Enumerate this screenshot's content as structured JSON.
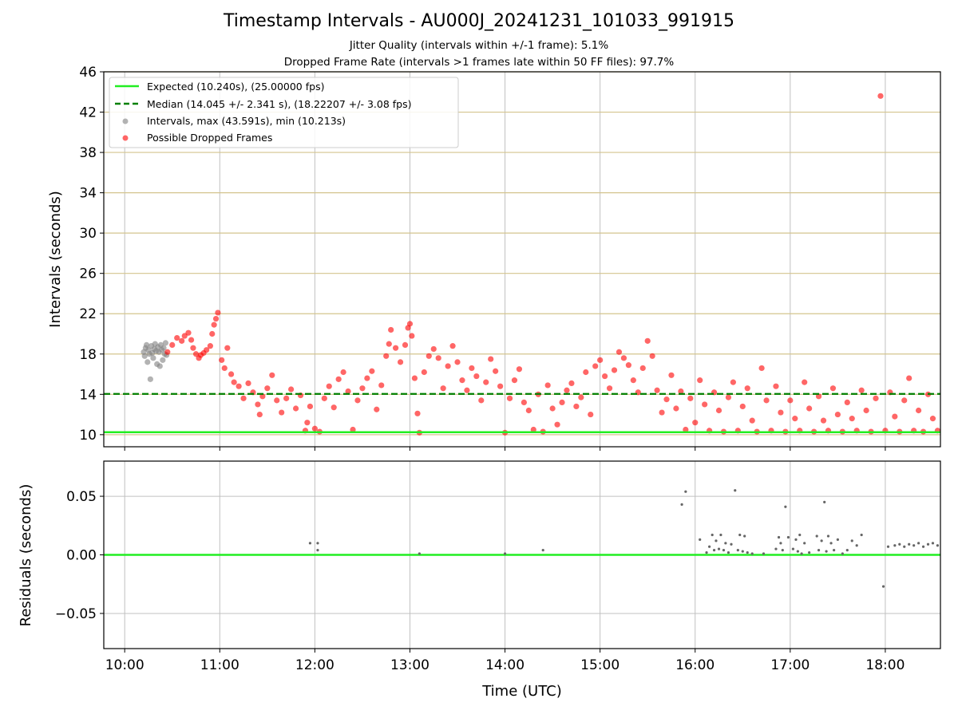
{
  "chart_data": [
    {
      "type": "scatter",
      "title": "Timestamp Intervals - AU000J_20241231_101033_991915",
      "subtitle_1": "Jitter Quality (intervals within +/-1 frame): 5.1%",
      "subtitle_2": "Dropped Frame Rate (intervals >1 frames late within 50 FF files): 97.7%",
      "xlabel": "",
      "ylabel": "Intervals (seconds)",
      "xlim": [
        9.78,
        18.58
      ],
      "ylim": [
        8.8,
        46
      ],
      "yticks": [
        10,
        14,
        18,
        22,
        26,
        30,
        34,
        38,
        42,
        46
      ],
      "ytick_labels": [
        "10",
        "14",
        "18",
        "22",
        "26",
        "30",
        "34",
        "38",
        "42",
        "46"
      ],
      "grid": true,
      "legend_position": "top-left",
      "colors": {
        "expected": "#22ee22",
        "median": "#008000",
        "intervals": "#808080",
        "dropped": "#ff0000",
        "hgrid": "#d4c48e"
      },
      "series": [
        {
          "name": "Expected (10.240s), (25.00000 fps)",
          "kind": "hline",
          "y": 10.24
        },
        {
          "name": "Median (14.045 +/- 2.341 s), (18.22207 +/- 3.08 fps)",
          "kind": "hline-dashed",
          "y": 14.045
        },
        {
          "name": "Intervals, max (43.591s), min (10.213s)",
          "kind": "scatter",
          "points": [
            [
              10.2,
              18.2
            ],
            [
              10.21,
              17.8
            ],
            [
              10.22,
              18.6
            ],
            [
              10.23,
              18.9
            ],
            [
              10.24,
              17.2
            ],
            [
              10.25,
              18.4
            ],
            [
              10.26,
              18.0
            ],
            [
              10.27,
              15.5
            ],
            [
              10.28,
              18.8
            ],
            [
              10.29,
              18.1
            ],
            [
              10.3,
              17.6
            ],
            [
              10.31,
              18.5
            ],
            [
              10.32,
              19.0
            ],
            [
              10.33,
              18.3
            ],
            [
              10.34,
              17.0
            ],
            [
              10.35,
              18.7
            ],
            [
              10.36,
              18.2
            ],
            [
              10.37,
              16.8
            ],
            [
              10.38,
              18.9
            ],
            [
              10.39,
              18.4
            ],
            [
              10.4,
              17.4
            ],
            [
              10.41,
              18.6
            ],
            [
              10.42,
              18.0
            ],
            [
              10.43,
              19.1
            ],
            [
              10.44,
              17.9
            ]
          ]
        },
        {
          "name": "Possible Dropped Frames",
          "kind": "scatter",
          "points": [
            [
              10.45,
              18.2
            ],
            [
              10.5,
              18.9
            ],
            [
              10.55,
              19.6
            ],
            [
              10.6,
              19.3
            ],
            [
              10.63,
              19.8
            ],
            [
              10.67,
              20.1
            ],
            [
              10.7,
              19.4
            ],
            [
              10.72,
              18.6
            ],
            [
              10.75,
              18.0
            ],
            [
              10.78,
              17.6
            ],
            [
              10.8,
              17.9
            ],
            [
              10.83,
              18.1
            ],
            [
              10.86,
              18.4
            ],
            [
              10.9,
              18.8
            ],
            [
              10.92,
              20.0
            ],
            [
              10.94,
              20.9
            ],
            [
              10.96,
              21.5
            ],
            [
              10.98,
              22.1
            ],
            [
              11.02,
              17.4
            ],
            [
              11.05,
              16.6
            ],
            [
              11.08,
              18.6
            ],
            [
              11.12,
              16.0
            ],
            [
              11.15,
              15.2
            ],
            [
              11.2,
              14.8
            ],
            [
              11.25,
              13.6
            ],
            [
              11.3,
              15.1
            ],
            [
              11.35,
              14.2
            ],
            [
              11.4,
              13.0
            ],
            [
              11.42,
              12.0
            ],
            [
              11.45,
              13.8
            ],
            [
              11.5,
              14.6
            ],
            [
              11.55,
              15.9
            ],
            [
              11.6,
              13.4
            ],
            [
              11.65,
              12.2
            ],
            [
              11.7,
              13.6
            ],
            [
              11.75,
              14.5
            ],
            [
              11.8,
              12.6
            ],
            [
              11.85,
              13.9
            ],
            [
              11.9,
              10.4
            ],
            [
              11.92,
              11.2
            ],
            [
              11.95,
              12.8
            ],
            [
              12.0,
              10.6
            ],
            [
              12.05,
              10.3
            ],
            [
              12.1,
              13.6
            ],
            [
              12.15,
              14.8
            ],
            [
              12.2,
              12.7
            ],
            [
              12.25,
              15.5
            ],
            [
              12.3,
              16.2
            ],
            [
              12.35,
              14.3
            ],
            [
              12.4,
              10.5
            ],
            [
              12.45,
              13.4
            ],
            [
              12.5,
              14.6
            ],
            [
              12.55,
              15.6
            ],
            [
              12.6,
              16.3
            ],
            [
              12.65,
              12.5
            ],
            [
              12.7,
              14.9
            ],
            [
              12.75,
              17.8
            ],
            [
              12.78,
              19.0
            ],
            [
              12.8,
              20.4
            ],
            [
              12.85,
              18.6
            ],
            [
              12.9,
              17.2
            ],
            [
              12.95,
              18.9
            ],
            [
              12.98,
              20.6
            ],
            [
              13.0,
              21.0
            ],
            [
              13.02,
              19.8
            ],
            [
              13.05,
              15.6
            ],
            [
              13.08,
              12.1
            ],
            [
              13.1,
              10.2
            ],
            [
              13.15,
              16.2
            ],
            [
              13.2,
              17.8
            ],
            [
              13.25,
              18.5
            ],
            [
              13.3,
              17.6
            ],
            [
              13.35,
              14.6
            ],
            [
              13.4,
              16.8
            ],
            [
              13.45,
              18.8
            ],
            [
              13.5,
              17.2
            ],
            [
              13.55,
              15.4
            ],
            [
              13.6,
              14.4
            ],
            [
              13.65,
              16.6
            ],
            [
              13.7,
              15.8
            ],
            [
              13.75,
              13.4
            ],
            [
              13.8,
              15.2
            ],
            [
              13.85,
              17.5
            ],
            [
              13.9,
              16.3
            ],
            [
              13.95,
              14.8
            ],
            [
              14.0,
              10.2
            ],
            [
              14.05,
              13.6
            ],
            [
              14.1,
              15.4
            ],
            [
              14.15,
              16.5
            ],
            [
              14.2,
              13.2
            ],
            [
              14.25,
              12.4
            ],
            [
              14.3,
              10.5
            ],
            [
              14.35,
              14.0
            ],
            [
              14.4,
              10.3
            ],
            [
              14.45,
              14.9
            ],
            [
              14.5,
              12.6
            ],
            [
              14.55,
              11.0
            ],
            [
              14.6,
              13.2
            ],
            [
              14.65,
              14.4
            ],
            [
              14.7,
              15.1
            ],
            [
              14.75,
              12.8
            ],
            [
              14.8,
              13.7
            ],
            [
              14.85,
              16.2
            ],
            [
              14.9,
              12.0
            ],
            [
              14.95,
              16.8
            ],
            [
              15.0,
              17.4
            ],
            [
              15.05,
              15.8
            ],
            [
              15.1,
              14.6
            ],
            [
              15.15,
              16.4
            ],
            [
              15.2,
              18.2
            ],
            [
              15.25,
              17.6
            ],
            [
              15.3,
              16.9
            ],
            [
              15.35,
              15.4
            ],
            [
              15.4,
              14.2
            ],
            [
              15.45,
              16.6
            ],
            [
              15.5,
              19.3
            ],
            [
              15.55,
              17.8
            ],
            [
              15.6,
              14.4
            ],
            [
              15.65,
              12.2
            ],
            [
              15.7,
              13.5
            ],
            [
              15.75,
              15.9
            ],
            [
              15.8,
              12.6
            ],
            [
              15.85,
              14.3
            ],
            [
              15.9,
              10.5
            ],
            [
              15.95,
              13.6
            ],
            [
              16.0,
              11.2
            ],
            [
              16.05,
              15.4
            ],
            [
              16.1,
              13.0
            ],
            [
              16.15,
              10.4
            ],
            [
              16.2,
              14.2
            ],
            [
              16.25,
              12.4
            ],
            [
              16.3,
              10.3
            ],
            [
              16.35,
              13.7
            ],
            [
              16.4,
              15.2
            ],
            [
              16.45,
              10.4
            ],
            [
              16.5,
              12.8
            ],
            [
              16.55,
              14.6
            ],
            [
              16.6,
              11.4
            ],
            [
              16.65,
              10.3
            ],
            [
              16.7,
              16.6
            ],
            [
              16.75,
              13.4
            ],
            [
              16.8,
              10.4
            ],
            [
              16.85,
              14.8
            ],
            [
              16.9,
              12.2
            ],
            [
              16.95,
              10.3
            ],
            [
              17.0,
              13.4
            ],
            [
              17.05,
              11.6
            ],
            [
              17.1,
              10.4
            ],
            [
              17.15,
              15.2
            ],
            [
              17.2,
              12.6
            ],
            [
              17.25,
              10.3
            ],
            [
              17.3,
              13.8
            ],
            [
              17.35,
              11.4
            ],
            [
              17.4,
              10.4
            ],
            [
              17.45,
              14.6
            ],
            [
              17.5,
              12.0
            ],
            [
              17.55,
              10.3
            ],
            [
              17.6,
              13.2
            ],
            [
              17.65,
              11.6
            ],
            [
              17.7,
              10.4
            ],
            [
              17.75,
              14.4
            ],
            [
              17.8,
              12.4
            ],
            [
              17.85,
              10.3
            ],
            [
              17.9,
              13.6
            ],
            [
              17.95,
              43.6
            ],
            [
              18.0,
              10.4
            ],
            [
              18.05,
              14.2
            ],
            [
              18.1,
              11.8
            ],
            [
              18.15,
              10.3
            ],
            [
              18.2,
              13.4
            ],
            [
              18.25,
              15.6
            ],
            [
              18.3,
              10.4
            ],
            [
              18.35,
              12.4
            ],
            [
              18.4,
              10.3
            ],
            [
              18.45,
              14.0
            ],
            [
              18.5,
              11.6
            ],
            [
              18.55,
              10.4
            ]
          ]
        }
      ]
    },
    {
      "type": "scatter",
      "xlabel": "Time (UTC)",
      "ylabel": "Residuals (seconds)",
      "xlim": [
        9.78,
        18.58
      ],
      "ylim": [
        -0.08,
        0.08
      ],
      "yticks": [
        -0.05,
        0.0,
        0.05
      ],
      "ytick_labels": [
        "−0.05",
        "0.00",
        "0.05"
      ],
      "xticks": [
        10,
        11,
        12,
        13,
        14,
        15,
        16,
        17,
        18
      ],
      "xtick_labels": [
        "10:00",
        "11:00",
        "12:00",
        "13:00",
        "14:00",
        "15:00",
        "16:00",
        "17:00",
        "18:00"
      ],
      "grid": true,
      "colors": {
        "zero_line": "#22ee22",
        "points": "#666666",
        "grid": "#c0c0c0"
      },
      "zero_line": 0.0,
      "points": [
        [
          11.95,
          0.01
        ],
        [
          12.03,
          0.01
        ],
        [
          12.03,
          0.004
        ],
        [
          13.1,
          0.001
        ],
        [
          14.0,
          0.001
        ],
        [
          14.4,
          0.004
        ],
        [
          15.86,
          0.043
        ],
        [
          15.9,
          0.054
        ],
        [
          16.05,
          0.013
        ],
        [
          16.12,
          0.002
        ],
        [
          16.15,
          0.007
        ],
        [
          16.18,
          0.017
        ],
        [
          16.2,
          0.004
        ],
        [
          16.22,
          0.012
        ],
        [
          16.25,
          0.005
        ],
        [
          16.27,
          0.017
        ],
        [
          16.3,
          0.004
        ],
        [
          16.32,
          0.01
        ],
        [
          16.35,
          0.002
        ],
        [
          16.38,
          0.009
        ],
        [
          16.42,
          0.055
        ],
        [
          16.45,
          0.004
        ],
        [
          16.47,
          0.017
        ],
        [
          16.5,
          0.003
        ],
        [
          16.52,
          0.016
        ],
        [
          16.55,
          0.002
        ],
        [
          16.6,
          0.001
        ],
        [
          16.72,
          0.001
        ],
        [
          16.85,
          0.005
        ],
        [
          16.88,
          0.015
        ],
        [
          16.9,
          0.01
        ],
        [
          16.92,
          0.004
        ],
        [
          16.95,
          0.041
        ],
        [
          16.98,
          0.015
        ],
        [
          17.03,
          0.005
        ],
        [
          17.06,
          0.013
        ],
        [
          17.08,
          0.003
        ],
        [
          17.1,
          0.017
        ],
        [
          17.12,
          0.001
        ],
        [
          17.15,
          0.01
        ],
        [
          17.2,
          0.002
        ],
        [
          17.28,
          0.016
        ],
        [
          17.3,
          0.004
        ],
        [
          17.33,
          0.012
        ],
        [
          17.36,
          0.045
        ],
        [
          17.38,
          0.003
        ],
        [
          17.4,
          0.016
        ],
        [
          17.43,
          0.01
        ],
        [
          17.46,
          0.004
        ],
        [
          17.5,
          0.013
        ],
        [
          17.55,
          0.001
        ],
        [
          17.6,
          0.004
        ],
        [
          17.65,
          0.012
        ],
        [
          17.7,
          0.008
        ],
        [
          17.75,
          0.017
        ],
        [
          17.98,
          -0.027
        ],
        [
          18.03,
          0.007
        ],
        [
          18.1,
          0.008
        ],
        [
          18.15,
          0.009
        ],
        [
          18.2,
          0.007
        ],
        [
          18.25,
          0.009
        ],
        [
          18.3,
          0.008
        ],
        [
          18.35,
          0.01
        ],
        [
          18.4,
          0.007
        ],
        [
          18.45,
          0.009
        ],
        [
          18.5,
          0.01
        ],
        [
          18.55,
          0.008
        ]
      ]
    }
  ]
}
